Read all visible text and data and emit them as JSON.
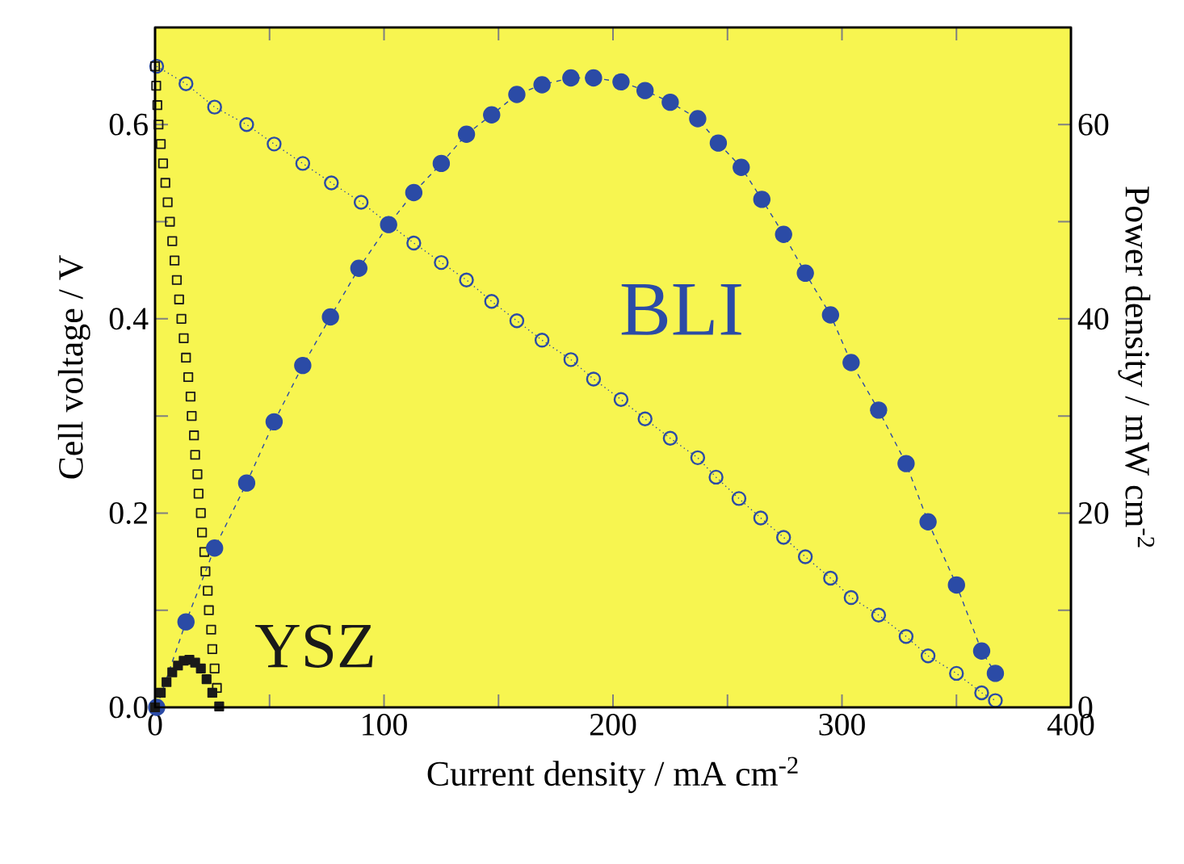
{
  "chart_data": {
    "type": "line",
    "xlabel": "Current density / mA cm$^{-2}$",
    "ylabel": "Cell voltage / V",
    "y2label": "Power density / mW cm$^{-2}$",
    "xlim": [
      0,
      400
    ],
    "xticks": [
      0,
      {
        "value": 50,
        "label": null
      },
      100,
      {
        "value": 150,
        "label": null
      },
      200,
      {
        "value": 250,
        "label": null
      },
      300,
      {
        "value": 350,
        "label": null
      },
      400
    ],
    "ylim": [
      0,
      0.7
    ],
    "yticks": [
      {
        "value": 0,
        "label": "0.0"
      },
      {
        "value": 0.1,
        "label": null
      },
      0.2,
      {
        "value": 0.3,
        "label": null
      },
      0.4,
      {
        "value": 0.5,
        "label": null
      },
      0.6
    ],
    "y2lim": [
      0,
      70
    ],
    "y2ticks": [
      0,
      {
        "value": 10,
        "label": null
      },
      20,
      {
        "value": 30,
        "label": null
      },
      40,
      {
        "value": 50,
        "label": null
      },
      60
    ],
    "annotations": [
      "BLI",
      "YSZ"
    ],
    "series": [
      {
        "axis": "y",
        "marker": "circle",
        "line_style": "dotted",
        "color": "#2b4ba6",
        "x": [
          0.7,
          13.5,
          26,
          40,
          52,
          64.5,
          77,
          90,
          102,
          113,
          125,
          136,
          147,
          158,
          169,
          181.6,
          191.5,
          203.5,
          214,
          225,
          237,
          245,
          255,
          264.5,
          274.5,
          284,
          295,
          304,
          316,
          328,
          337.6,
          350,
          361,
          367
        ],
        "values": [
          0.66,
          0.642,
          0.618,
          0.6,
          0.58,
          0.56,
          0.54,
          0.52,
          0.498,
          0.478,
          0.458,
          0.44,
          0.418,
          0.398,
          0.378,
          0.358,
          0.338,
          0.317,
          0.297,
          0.277,
          0.257,
          0.237,
          0.215,
          0.195,
          0.175,
          0.155,
          0.133,
          0.113,
          0.095,
          0.073,
          0.053,
          0.035,
          0.015,
          0.007
        ]
      },
      {
        "axis": "y2",
        "marker": "circle",
        "line_style": "dashed",
        "color": "#2b4ba6",
        "x": [
          0.7,
          13.5,
          26,
          40,
          52,
          64.5,
          76.6,
          89,
          102,
          113,
          125,
          136,
          147,
          158,
          169,
          181.6,
          191.5,
          203.5,
          214,
          225,
          237,
          246,
          256,
          265,
          274.5,
          284,
          295,
          304,
          316,
          328,
          337.6,
          350,
          361,
          367
        ],
        "values": [
          0,
          8.8,
          16.4,
          23.1,
          29.4,
          35.2,
          40.2,
          45.2,
          49.7,
          53,
          56,
          59,
          61,
          63.1,
          64.1,
          64.8,
          64.8,
          64.4,
          63.5,
          62.3,
          60.6,
          58.1,
          55.6,
          52.3,
          48.7,
          44.7,
          40.4,
          35.5,
          30.6,
          25.1,
          19.1,
          12.6,
          5.8,
          3.5
        ]
      },
      {
        "type": "scatter",
        "axis": "y",
        "marker": "square",
        "color": "#1a1a1a",
        "x": [
          0,
          0.5,
          1,
          1.5,
          2.5,
          3.5,
          4.5,
          5.5,
          6.5,
          7.5,
          8.5,
          9.5,
          10.5,
          11.5,
          12.5,
          13.5,
          14.5,
          15.5,
          16,
          17,
          17.5,
          18.5,
          19,
          20,
          20.5,
          21.5,
          22,
          23,
          23.5,
          24.5,
          25,
          26,
          27
        ],
        "values": [
          0.66,
          0.64,
          0.62,
          0.6,
          0.58,
          0.56,
          0.54,
          0.52,
          0.5,
          0.48,
          0.46,
          0.44,
          0.42,
          0.4,
          0.38,
          0.36,
          0.34,
          0.32,
          0.3,
          0.28,
          0.26,
          0.24,
          0.22,
          0.2,
          0.18,
          0.16,
          0.14,
          0.12,
          0.1,
          0.08,
          0.06,
          0.04,
          0.02
        ]
      },
      {
        "type": "scatter",
        "axis": "y2",
        "marker": "square",
        "color": "#1a1a1a",
        "x": [
          0,
          2.5,
          5,
          7.5,
          10,
          12.5,
          15,
          17.5,
          20,
          22.5,
          25,
          28
        ],
        "values": [
          0,
          1.5,
          2.6,
          3.6,
          4.3,
          4.8,
          4.9,
          4.6,
          4,
          2.9,
          1.5,
          0.1
        ]
      }
    ]
  }
}
